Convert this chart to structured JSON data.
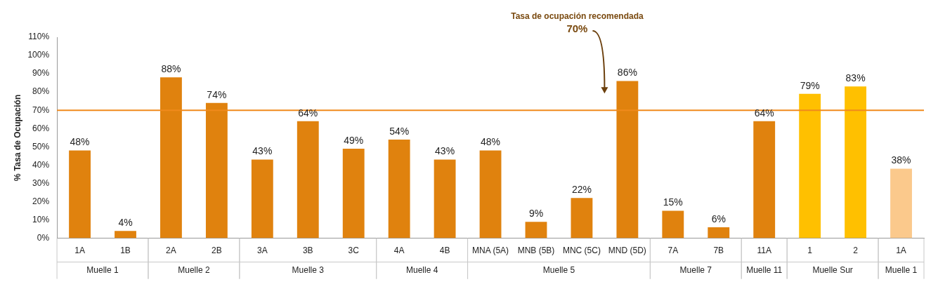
{
  "chart_data": {
    "type": "bar",
    "ylabel": "% Tasa de Ocupación",
    "categories": [
      "1A",
      "1B",
      "2A",
      "2B",
      "3A",
      "3B",
      "3C",
      "4A",
      "4B",
      "MNA (5A)",
      "MNB (5B)",
      "MNC (5C)",
      "MND (5D)",
      "7A",
      "7B",
      "11A",
      "1",
      "2",
      "1A"
    ],
    "values": [
      48,
      4,
      88,
      74,
      43,
      64,
      49,
      54,
      43,
      48,
      9,
      22,
      86,
      15,
      6,
      64,
      79,
      83,
      38
    ],
    "colors": [
      "#e0820e",
      "#e0820e",
      "#e0820e",
      "#e0820e",
      "#e0820e",
      "#e0820e",
      "#e0820e",
      "#e0820e",
      "#e0820e",
      "#e0820e",
      "#e0820e",
      "#e0820e",
      "#e0820e",
      "#e0820e",
      "#e0820e",
      "#e0820e",
      "#ffc000",
      "#ffc000",
      "#fbc98c"
    ],
    "ylim": [
      0,
      110
    ],
    "yticks": [
      {
        "value": 0,
        "label": "0%"
      },
      {
        "value": 10,
        "label": "10%"
      },
      {
        "value": 20,
        "label": "20%"
      },
      {
        "value": 30,
        "label": "30%"
      },
      {
        "value": 40,
        "label": "40%"
      },
      {
        "value": 50,
        "label": "50%"
      },
      {
        "value": 60,
        "label": "60%"
      },
      {
        "value": 70,
        "label": "70%"
      },
      {
        "value": 80,
        "label": "80%"
      },
      {
        "value": 90,
        "label": "90%"
      },
      {
        "value": 100,
        "label": "100%"
      },
      {
        "value": 110,
        "label": "110%"
      }
    ],
    "grid": false,
    "value_labels": [
      "48%",
      "4%",
      "88%",
      "74%",
      "43%",
      "64%",
      "49%",
      "54%",
      "43%",
      "48%",
      "9%",
      "22%",
      "86%",
      "15%",
      "6%",
      "64%",
      "79%",
      "83%",
      "38%"
    ],
    "ref_lines": [
      {
        "axis": "y",
        "value": 70,
        "color": "#f08a1c",
        "line_style": "solid"
      }
    ],
    "annotations": [
      "Tasa de ocupación recomendada",
      "70%",
      "Muelle 1",
      "Muelle 2",
      "Muelle 3",
      "Muelle 4",
      "Muelle 5",
      "Muelle 7",
      "Muelle 11",
      "Muelle Sur",
      "Muelle 1"
    ]
  }
}
